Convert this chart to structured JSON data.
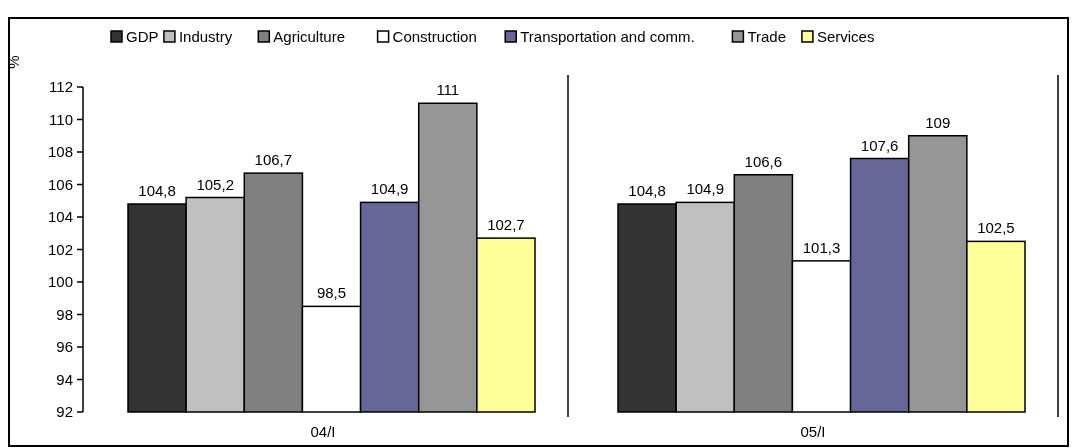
{
  "chart_data": {
    "type": "bar",
    "ylabel": "%",
    "categories": [
      "04/I",
      "05/I"
    ],
    "series": [
      {
        "name": "GDP",
        "color": "#333333",
        "values": [
          104.8,
          104.8
        ],
        "value_labels": [
          "104,8",
          "104,8"
        ]
      },
      {
        "name": "Industry",
        "color": "#c0c0c0",
        "values": [
          105.2,
          104.9
        ],
        "value_labels": [
          "105,2",
          "104,9"
        ]
      },
      {
        "name": "Agriculture",
        "color": "#808080",
        "values": [
          106.7,
          106.6
        ],
        "value_labels": [
          "106,7",
          "106,6"
        ]
      },
      {
        "name": "Construction",
        "color": "#ffffff",
        "values": [
          98.5,
          101.3
        ],
        "value_labels": [
          "98,5",
          "101,3"
        ]
      },
      {
        "name": "Transportation and comm.",
        "color": "#666699",
        "values": [
          104.9,
          107.6
        ],
        "value_labels": [
          "104,9",
          "107,6"
        ]
      },
      {
        "name": "Trade",
        "color": "#969696",
        "values": [
          111,
          109
        ],
        "value_labels": [
          "111",
          "109"
        ]
      },
      {
        "name": "Services",
        "color": "#ffff99",
        "values": [
          102.7,
          102.5
        ],
        "value_labels": [
          "102,7",
          "102,5"
        ]
      }
    ],
    "ylim": [
      92,
      112
    ],
    "yticks": [
      92,
      94,
      96,
      98,
      100,
      102,
      104,
      106,
      108,
      110,
      112
    ],
    "legend": "top",
    "grid": false
  }
}
